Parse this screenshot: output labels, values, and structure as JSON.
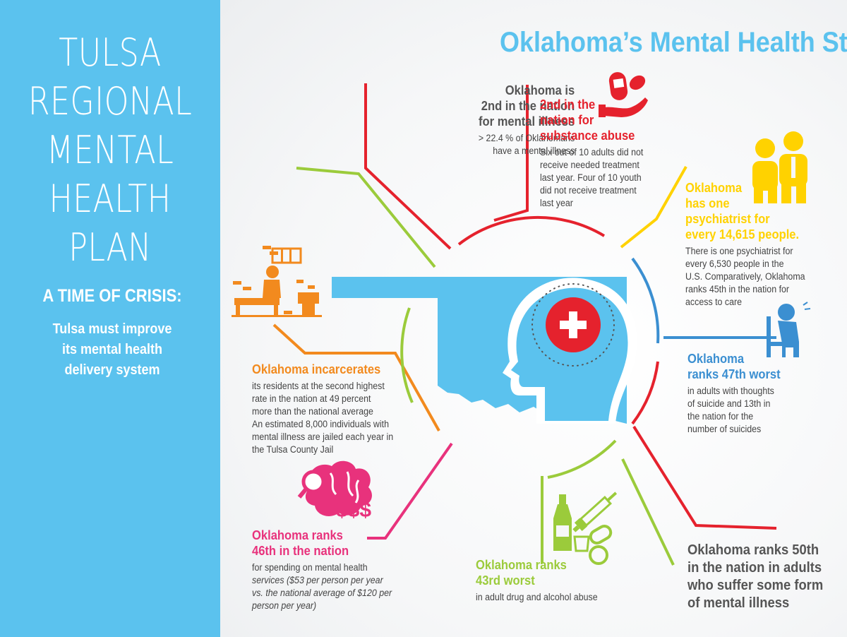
{
  "sidebar": {
    "title_lines": [
      "TULSA",
      "REGIONAL",
      "MENTAL",
      "HEALTH",
      "PLAN"
    ],
    "crisis": "A TIME OF CRISIS:",
    "subtitle_lines": [
      "Tulsa must improve",
      "its mental health",
      "delivery system"
    ]
  },
  "main_title": "Oklahoma’s Mental Health Statistics",
  "colors": {
    "sidebar_blue": "#5bc2ee",
    "red": "#e5222d",
    "yellow": "#ffd200",
    "blue": "#3b8fd1",
    "orange": "#f28a1e",
    "pink": "#e8327c",
    "green": "#9bcb3b",
    "dark_gray": "#555555"
  },
  "center_icon": "head-with-medical-cross-icon",
  "stats": {
    "mental_illness": {
      "icon": "none",
      "heading_lines": [
        "Oklahoma is",
        "2nd in the nation",
        "for mental illness"
      ],
      "body_lines": [
        "> 22.4 % of Oklahomans",
        "have a mental illness"
      ]
    },
    "substance_abuse": {
      "icon": "pills-hand-icon",
      "heading_lines": [
        "2nd in the",
        "nation for",
        "substance abuse"
      ],
      "body_lines": [
        "Six out of 10 adults did not",
        "receive needed treatment",
        "last year. Four of 10 youth",
        "did not receive treatment",
        "last year"
      ]
    },
    "psychiatrist": {
      "icon": "doctor-and-patient-icon",
      "heading_lines": [
        "Oklahoma",
        "has one",
        "psychiatrist for",
        "every 14,615 people."
      ],
      "body_lines": [
        "There is one psychiatrist for",
        "every 6,530 people in the",
        "U.S. Comparatively, Oklahoma",
        "ranks 45th in the nation for",
        "access to care"
      ]
    },
    "suicide": {
      "icon": "distressed-person-chair-icon",
      "heading_lines": [
        "Oklahoma",
        "ranks 47th worst"
      ],
      "body_lines": [
        "in adults with thoughts",
        "of suicide and 13th in",
        "the nation for the",
        "number of suicides"
      ]
    },
    "incarceration": {
      "icon": "jail-cell-icon",
      "heading_lines": [
        "Oklahoma incarcerates"
      ],
      "body_lines": [
        "its residents at the second highest",
        "rate in the nation at 49 percent",
        "more than the national average",
        "An estimated 8,000 individuals with",
        "mental illness are jailed each year in",
        "the Tulsa County Jail"
      ]
    },
    "spending": {
      "icon": "brain-dollars-icon",
      "dollars": "$$$",
      "heading_lines": [
        "Oklahoma ranks",
        "46th in the nation"
      ],
      "body_lines": [
        "for spending on mental health",
        "services ($53 per person per year",
        "vs. the national average of $120 per",
        "person per year)"
      ]
    },
    "drug_alcohol": {
      "icon": "bottle-syringe-pills-icon",
      "heading_lines": [
        "Oklahoma ranks",
        "43rd worst"
      ],
      "body_lines": [
        "in adult drug and alcohol abuse"
      ]
    },
    "ranks_50th": {
      "icon": "none",
      "heading_lines": [
        "Oklahoma ranks 50th",
        "in the nation in adults",
        "who suffer some form",
        "of mental illness"
      ]
    }
  }
}
